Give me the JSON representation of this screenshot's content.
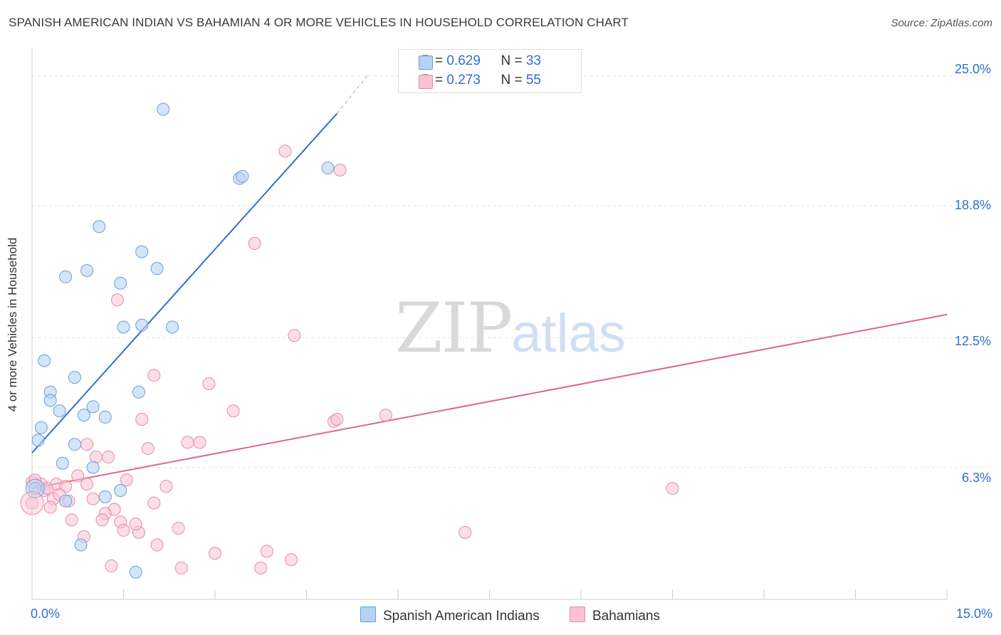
{
  "title": "SPANISH AMERICAN INDIAN VS BAHAMIAN 4 OR MORE VEHICLES IN HOUSEHOLD CORRELATION CHART",
  "source": "Source: ZipAtlas.com",
  "watermark": {
    "zip": "ZIP",
    "atlas": "atlas"
  },
  "colors": {
    "blue_fill": "#b8d3f2",
    "blue_stroke": "#6b9ddb",
    "blue_line": "#2f6fce",
    "pink_fill": "#f7c3d3",
    "pink_stroke": "#e88aa8",
    "pink_line": "#e0638e"
  },
  "legend": {
    "rows": [
      {
        "r_label": "R = ",
        "r_value": "0.629",
        "n_label": "N = ",
        "n_value": "33"
      },
      {
        "r_label": "R = ",
        "r_value": "0.273",
        "n_label": "N = ",
        "n_value": "55"
      }
    ]
  },
  "chart_data": {
    "type": "scatter",
    "title": "SPANISH AMERICAN INDIAN VS BAHAMIAN 4 OR MORE VEHICLES IN HOUSEHOLD CORRELATION CHART",
    "xlabel": "",
    "ylabel": "4 or more Vehicles in Household",
    "xlim": [
      0,
      15
    ],
    "ylim": [
      0,
      25.9
    ],
    "x_tick_labels": [
      "0.0%",
      "15.0%"
    ],
    "y_ticks": [
      6.3,
      12.5,
      18.8,
      25.0
    ],
    "y_tick_labels": [
      "6.3%",
      "12.5%",
      "18.8%",
      "25.0%"
    ],
    "grid": "horizontal dashed",
    "legend_position": "bottom-center",
    "series": [
      {
        "name": "Spanish American Indians",
        "r": 0.629,
        "n": 33,
        "trend": {
          "x": [
            0.0,
            5.0
          ],
          "y": [
            7.0,
            23.2
          ],
          "dashed_to": [
            5.5,
            25.0
          ]
        },
        "points": [
          [
            2.15,
            23.4
          ],
          [
            0.55,
            15.4
          ],
          [
            0.9,
            15.7
          ],
          [
            1.1,
            17.8
          ],
          [
            1.45,
            15.1
          ],
          [
            1.8,
            16.6
          ],
          [
            2.05,
            15.8
          ],
          [
            1.5,
            13.0
          ],
          [
            1.8,
            13.1
          ],
          [
            2.3,
            13.0
          ],
          [
            3.4,
            20.1
          ],
          [
            3.45,
            20.2
          ],
          [
            4.85,
            20.6
          ],
          [
            0.2,
            11.4
          ],
          [
            0.3,
            9.9
          ],
          [
            0.3,
            9.5
          ],
          [
            0.45,
            9.0
          ],
          [
            0.7,
            10.6
          ],
          [
            0.85,
            8.8
          ],
          [
            1.0,
            9.2
          ],
          [
            1.2,
            8.7
          ],
          [
            1.75,
            9.9
          ],
          [
            0.15,
            8.2
          ],
          [
            0.1,
            7.6
          ],
          [
            0.7,
            7.4
          ],
          [
            0.5,
            6.5
          ],
          [
            1.0,
            6.3
          ],
          [
            0.05,
            5.3
          ],
          [
            0.55,
            4.7
          ],
          [
            1.2,
            4.9
          ],
          [
            1.45,
            5.2
          ],
          [
            0.8,
            2.6
          ],
          [
            1.7,
            1.3
          ]
        ]
      },
      {
        "name": "Bahamians",
        "r": 0.273,
        "n": 55,
        "trend": {
          "x": [
            0.0,
            15.0
          ],
          "y": [
            5.3,
            13.6
          ]
        },
        "points": [
          [
            4.15,
            21.4
          ],
          [
            5.05,
            20.5
          ],
          [
            3.65,
            17.0
          ],
          [
            1.4,
            14.3
          ],
          [
            4.3,
            12.6
          ],
          [
            2.0,
            10.7
          ],
          [
            2.9,
            10.3
          ],
          [
            3.3,
            9.0
          ],
          [
            5.8,
            8.8
          ],
          [
            4.95,
            8.5
          ],
          [
            5.0,
            8.6
          ],
          [
            1.8,
            8.6
          ],
          [
            2.55,
            7.5
          ],
          [
            2.75,
            7.5
          ],
          [
            0.9,
            7.4
          ],
          [
            1.9,
            7.2
          ],
          [
            1.05,
            6.8
          ],
          [
            1.25,
            6.8
          ],
          [
            0.75,
            5.9
          ],
          [
            1.55,
            5.7
          ],
          [
            0.0,
            5.6
          ],
          [
            0.15,
            5.5
          ],
          [
            0.4,
            5.5
          ],
          [
            0.55,
            5.4
          ],
          [
            0.9,
            5.5
          ],
          [
            2.2,
            5.4
          ],
          [
            0.2,
            5.2
          ],
          [
            10.5,
            5.3
          ],
          [
            0.35,
            4.8
          ],
          [
            1.0,
            4.8
          ],
          [
            0.6,
            4.7
          ],
          [
            2.0,
            4.6
          ],
          [
            0.3,
            4.4
          ],
          [
            1.35,
            4.3
          ],
          [
            1.2,
            4.1
          ],
          [
            0.0,
            4.6
          ],
          [
            0.65,
            3.8
          ],
          [
            1.15,
            3.8
          ],
          [
            1.45,
            3.7
          ],
          [
            1.5,
            3.3
          ],
          [
            1.75,
            3.2
          ],
          [
            2.4,
            3.4
          ],
          [
            0.85,
            3.0
          ],
          [
            7.1,
            3.2
          ],
          [
            2.05,
            2.6
          ],
          [
            3.85,
            2.3
          ],
          [
            4.25,
            1.9
          ],
          [
            1.3,
            1.6
          ],
          [
            2.45,
            1.5
          ],
          [
            3.75,
            1.5
          ],
          [
            0.05,
            5.7
          ],
          [
            0.25,
            5.3
          ],
          [
            0.45,
            5.0
          ],
          [
            1.7,
            3.6
          ],
          [
            3.0,
            2.2
          ]
        ]
      }
    ]
  }
}
